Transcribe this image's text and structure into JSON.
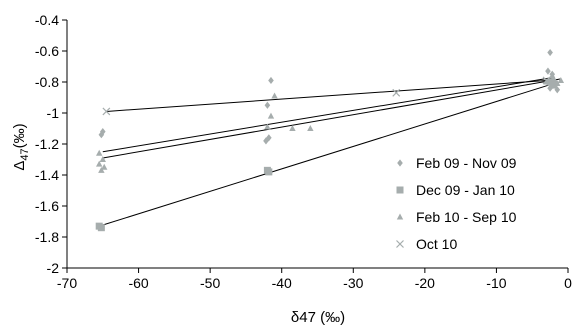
{
  "chart_data": {
    "type": "scatter",
    "xlabel": "δ47 (‰)",
    "ylabel_main": "Δ",
    "ylabel_sub": "47",
    "ylabel_rest": "(‰)",
    "xlim": [
      -70,
      0
    ],
    "ylim": [
      -2,
      -0.4
    ],
    "x_ticks": [
      -70,
      -60,
      -50,
      -40,
      -30,
      -20,
      -10,
      0
    ],
    "y_ticks": [
      -0.4,
      -0.6,
      -0.8,
      -1,
      -1.2,
      -1.4,
      -1.6,
      -1.8,
      -2
    ],
    "x_tick_labels": [
      "-70",
      "-60",
      "-50",
      "-40",
      "-30",
      "-20",
      "-10",
      "0"
    ],
    "y_tick_labels": [
      "-0.4",
      "-0.6",
      "-0.8",
      "-1",
      "-1.2",
      "-1.4",
      "-1.6",
      "-1.8",
      "-2"
    ],
    "grid": false,
    "legend_position": "right",
    "series": [
      {
        "name": "Feb 09 - Nov 09",
        "marker": "diamond",
        "color": "#a6adad",
        "points": [
          [
            -65,
            -1.12
          ],
          [
            -65.2,
            -1.14
          ],
          [
            -41.5,
            -0.79
          ],
          [
            -42,
            -0.95
          ],
          [
            -41.8,
            -1.16
          ],
          [
            -42.2,
            -1.18
          ],
          [
            -2.5,
            -0.61
          ],
          [
            -2.8,
            -0.73
          ],
          [
            -2.2,
            -0.75
          ],
          [
            -1.8,
            -0.8
          ],
          [
            -2.5,
            -0.84
          ],
          [
            -1.5,
            -0.85
          ]
        ],
        "fit": [
          [
            -65,
            -1.25
          ],
          [
            -2,
            -0.77
          ]
        ]
      },
      {
        "name": "Dec 09 - Jan 10",
        "marker": "square",
        "color": "#a6adad",
        "points": [
          [
            -65.5,
            -1.73
          ],
          [
            -65.2,
            -1.74
          ],
          [
            -42,
            -1.37
          ],
          [
            -41.8,
            -1.38
          ],
          [
            -2.5,
            -0.8
          ],
          [
            -2,
            -0.82
          ]
        ],
        "fit": [
          [
            -65.5,
            -1.73
          ],
          [
            -2,
            -0.81
          ]
        ]
      },
      {
        "name": "Feb 10 - Sep 10",
        "marker": "triangle",
        "color": "#a6adad",
        "points": [
          [
            -65.5,
            -1.26
          ],
          [
            -65,
            -1.3
          ],
          [
            -65.5,
            -1.33
          ],
          [
            -64.8,
            -1.35
          ],
          [
            -65.2,
            -1.37
          ],
          [
            -42,
            -1.09
          ],
          [
            -41.5,
            -1.02
          ],
          [
            -41,
            -0.89
          ],
          [
            -38.5,
            -1.1
          ],
          [
            -36,
            -1.1
          ],
          [
            -3,
            -0.8
          ],
          [
            -2,
            -0.78
          ],
          [
            -1.5,
            -0.81
          ],
          [
            -1,
            -0.79
          ],
          [
            -2.2,
            -0.76
          ]
        ],
        "fit": [
          [
            -65,
            -1.29
          ],
          [
            -1,
            -0.78
          ]
        ]
      },
      {
        "name": "Oct 10",
        "marker": "cross",
        "color": "#a6adad",
        "points": [
          [
            -64.5,
            -0.99
          ],
          [
            -24,
            -0.87
          ],
          [
            -3,
            -0.79
          ]
        ],
        "fit": [
          [
            -64.5,
            -0.99
          ],
          [
            -3,
            -0.79
          ]
        ]
      }
    ]
  },
  "colors": {
    "marker": "#a6adad",
    "fit_line": "#000000",
    "axis": "#000000"
  }
}
